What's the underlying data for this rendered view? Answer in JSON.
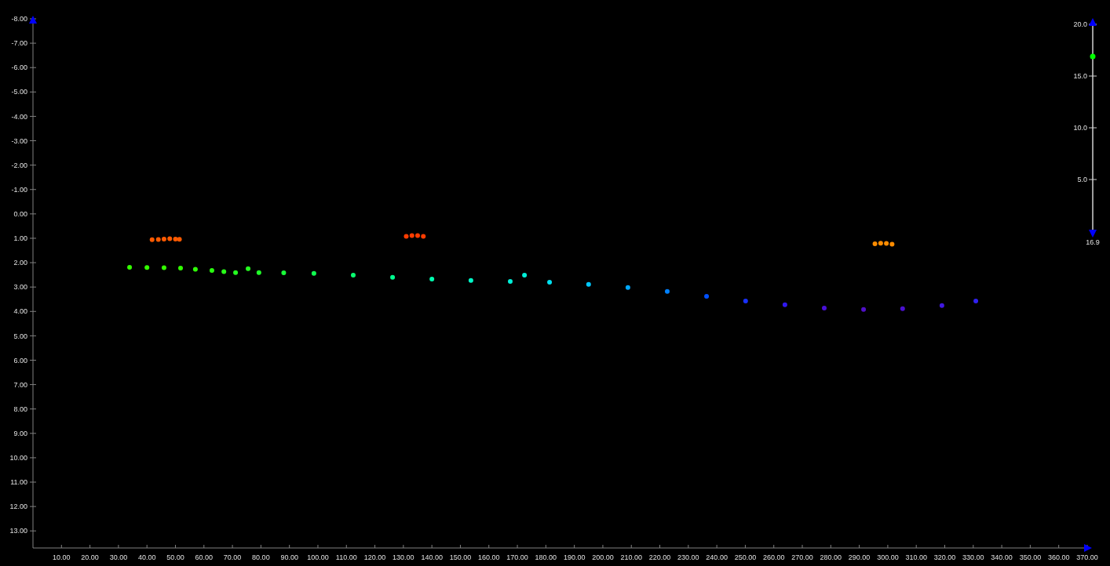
{
  "chart_data": {
    "type": "scatter",
    "marker": "circle",
    "xlim": [
      0,
      370
    ],
    "ylim": [
      13.7,
      -8
    ],
    "xticks": [
      {
        "value": 10,
        "label": "10.00"
      },
      {
        "value": 20,
        "label": "20.00"
      },
      {
        "value": 30,
        "label": "30.00"
      },
      {
        "value": 40,
        "label": "40.00"
      },
      {
        "value": 50,
        "label": "50.00"
      },
      {
        "value": 60,
        "label": "60.00"
      },
      {
        "value": 70,
        "label": "70.00"
      },
      {
        "value": 80,
        "label": "80.00"
      },
      {
        "value": 90,
        "label": "90.00"
      },
      {
        "value": 100,
        "label": "100.00"
      },
      {
        "value": 110,
        "label": "110.00"
      },
      {
        "value": 120,
        "label": "120.00"
      },
      {
        "value": 130,
        "label": "130.00"
      },
      {
        "value": 140,
        "label": "140.00"
      },
      {
        "value": 150,
        "label": "150.00"
      },
      {
        "value": 160,
        "label": "160.00"
      },
      {
        "value": 170,
        "label": "170.00"
      },
      {
        "value": 180,
        "label": "180.00"
      },
      {
        "value": 190,
        "label": "190.00"
      },
      {
        "value": 200,
        "label": "200.00"
      },
      {
        "value": 210,
        "label": "210.00"
      },
      {
        "value": 220,
        "label": "220.00"
      },
      {
        "value": 230,
        "label": "230.00"
      },
      {
        "value": 240,
        "label": "240.00"
      },
      {
        "value": 250,
        "label": "250.00"
      },
      {
        "value": 260,
        "label": "260.00"
      },
      {
        "value": 270,
        "label": "270.00"
      },
      {
        "value": 280,
        "label": "280.00"
      },
      {
        "value": 290,
        "label": "290.00"
      },
      {
        "value": 300,
        "label": "300.00"
      },
      {
        "value": 310,
        "label": "310.00"
      },
      {
        "value": 320,
        "label": "320.00"
      },
      {
        "value": 330,
        "label": "330.00"
      },
      {
        "value": 340,
        "label": "340.00"
      },
      {
        "value": 350,
        "label": "350.00"
      },
      {
        "value": 360,
        "label": "360.00"
      },
      {
        "value": 370,
        "label": "370.00"
      }
    ],
    "yticks": [
      {
        "value": -8,
        "label": "-8.00"
      },
      {
        "value": -7,
        "label": "-7.00"
      },
      {
        "value": -6,
        "label": "-6.00"
      },
      {
        "value": -5,
        "label": "-5.00"
      },
      {
        "value": -4,
        "label": "-4.00"
      },
      {
        "value": -3,
        "label": "-3.00"
      },
      {
        "value": -2,
        "label": "-2.00"
      },
      {
        "value": -1,
        "label": "-1.00"
      },
      {
        "value": 0,
        "label": "0.00"
      },
      {
        "value": 1,
        "label": "1.00"
      },
      {
        "value": 2,
        "label": "2.00"
      },
      {
        "value": 3,
        "label": "3.00"
      },
      {
        "value": 4,
        "label": "4.00"
      },
      {
        "value": 5,
        "label": "5.00"
      },
      {
        "value": 6,
        "label": "6.00"
      },
      {
        "value": 7,
        "label": "7.00"
      },
      {
        "value": 8,
        "label": "8.00"
      },
      {
        "value": 9,
        "label": "9.00"
      },
      {
        "value": 10,
        "label": "10.00"
      },
      {
        "value": 11,
        "label": "11.00"
      },
      {
        "value": 12,
        "label": "12.00"
      },
      {
        "value": 13,
        "label": "13.00"
      }
    ],
    "y2lim": [
      0,
      20
    ],
    "y2ticks": [
      {
        "value": 5,
        "label": "5.0"
      },
      {
        "value": 10,
        "label": "10.0"
      },
      {
        "value": 15,
        "label": "15.0"
      },
      {
        "value": 20,
        "label": "20.0"
      }
    ],
    "annotations": [
      "16.9"
    ],
    "series": [
      {
        "x": [
          33.9,
          40,
          46,
          51.8,
          57,
          62.8,
          67,
          71.1,
          75.5,
          79.3,
          88,
          98.6,
          112.4,
          126.2,
          140,
          153.7,
          167.5,
          172.5,
          181.3,
          195,
          208.8,
          222.6,
          236.4,
          250.1,
          263.9,
          277.7,
          291.5,
          305.2,
          319,
          330.9
        ],
        "values": [
          2.19,
          2.2,
          2.21,
          2.22,
          2.27,
          2.32,
          2.37,
          2.41,
          2.25,
          2.41,
          2.42,
          2.44,
          2.51,
          2.6,
          2.67,
          2.73,
          2.77,
          2.51,
          2.8,
          2.89,
          3.02,
          3.18,
          3.38,
          3.57,
          3.73,
          3.86,
          3.92,
          3.89,
          3.76,
          3.57
        ],
        "colors": [
          "#33ff00",
          "#33ff00",
          "#33ff00",
          "#30ff00",
          "#30ff08",
          "#2aff10",
          "#28ff18",
          "#25ff20",
          "#25ff20",
          "#20ff28",
          "#18ff38",
          "#10ff50",
          "#08ff70",
          "#00ff90",
          "#00ffb0",
          "#00fac8",
          "#00f0d8",
          "#00f0d8",
          "#00e0f0",
          "#00c8ff",
          "#00a8ff",
          "#0080ff",
          "#0050ff",
          "#1830ff",
          "#3018f0",
          "#4810d8",
          "#5010c8",
          "#4a10d0",
          "#4018e0",
          "#3020f0"
        ]
      },
      {
        "x": [
          41.8,
          44,
          46,
          48,
          50,
          51.4
        ],
        "values": [
          1.06,
          1.05,
          1.03,
          1.02,
          1.03,
          1.04
        ],
        "color": "#ff5a00"
      },
      {
        "x": [
          131,
          133,
          135,
          137
        ],
        "values": [
          0.92,
          0.89,
          0.89,
          0.92
        ],
        "color": "#ff3c00"
      },
      {
        "x": [
          295.5,
          297.5,
          299.5,
          301.5
        ],
        "values": [
          1.23,
          1.2,
          1.21,
          1.24
        ],
        "color": "#ff8c00"
      }
    ]
  }
}
